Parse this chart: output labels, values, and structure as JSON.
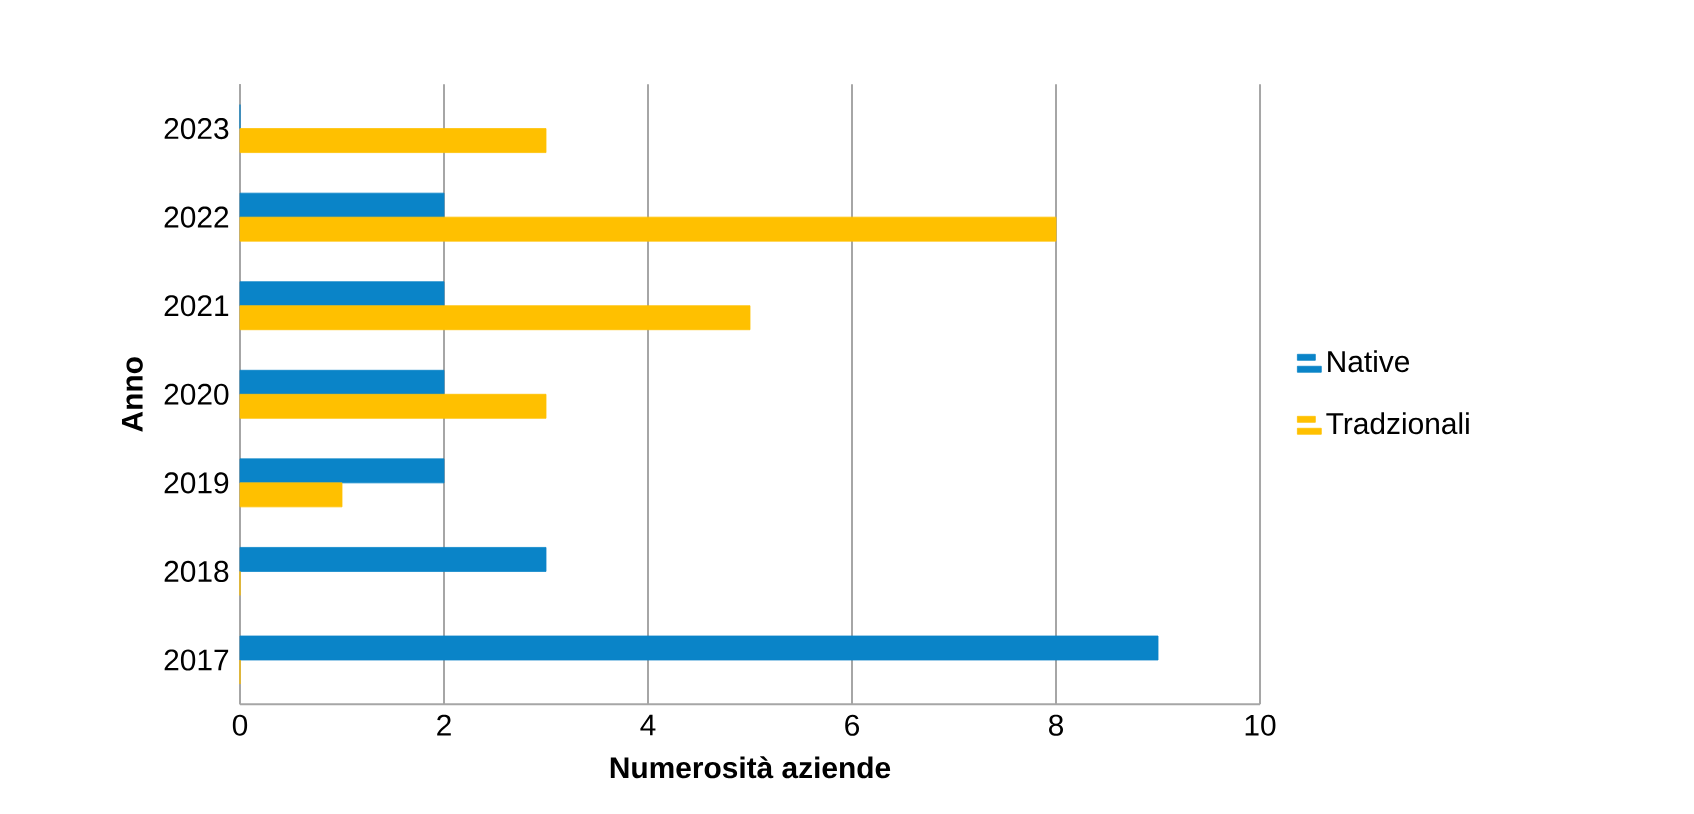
{
  "chart_data": {
    "type": "bar",
    "orientation": "horizontal",
    "xlabel": "Numerosità aziende",
    "ylabel": "Anno",
    "categories": [
      "2023",
      "2022",
      "2021",
      "2020",
      "2019",
      "2018",
      "2017"
    ],
    "series": [
      {
        "name": "Native",
        "color": "#0a84c8",
        "values": [
          0,
          2,
          2,
          2,
          2,
          3,
          9
        ]
      },
      {
        "name": "Tradzionali",
        "color": "#ffc000",
        "values": [
          3,
          8,
          5,
          3,
          1,
          0,
          0
        ]
      }
    ],
    "xlim": [
      0,
      10
    ],
    "xticks": [
      0,
      2,
      4,
      6,
      8,
      10
    ],
    "grid": "x",
    "legend": "right"
  }
}
